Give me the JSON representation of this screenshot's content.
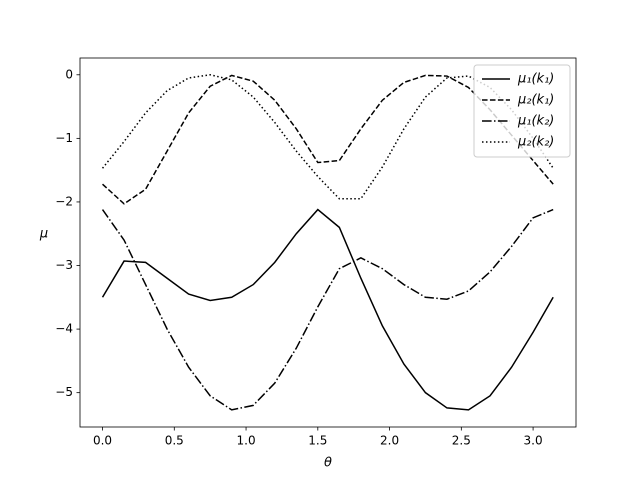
{
  "chart_data": {
    "type": "line",
    "xlabel": "θ",
    "ylabel": "μ",
    "x": [
      0,
      0.15,
      0.3,
      0.45,
      0.6,
      0.75,
      0.9,
      1.05,
      1.2,
      1.35,
      1.5,
      1.65,
      1.8,
      1.95,
      2.1,
      2.25,
      2.4,
      2.55,
      2.7,
      2.85,
      3.0,
      3.14
    ],
    "series": [
      {
        "name": "μ₁(k₁)",
        "color": "#000000",
        "linestyle": "solid",
        "values": [
          -3.5,
          -2.93,
          -2.95,
          -3.2,
          -3.45,
          -3.55,
          -3.5,
          -3.3,
          -2.95,
          -2.5,
          -2.12,
          -2.4,
          -3.2,
          -3.95,
          -4.55,
          -5.0,
          -5.24,
          -5.27,
          -5.05,
          -4.6,
          -4.05,
          -3.5
        ]
      },
      {
        "name": "μ₂(k₁)",
        "color": "#000000",
        "linestyle": "dashed",
        "values": [
          -1.72,
          -2.03,
          -1.8,
          -1.2,
          -0.6,
          -0.18,
          -0.01,
          -0.1,
          -0.4,
          -0.85,
          -1.38,
          -1.35,
          -0.85,
          -0.4,
          -0.12,
          -0.01,
          -0.02,
          -0.2,
          -0.55,
          -0.95,
          -1.35,
          -1.72
        ]
      },
      {
        "name": "μ₁(k₂)",
        "color": "#000000",
        "linestyle": "dashdot",
        "values": [
          -2.12,
          -2.6,
          -3.3,
          -4.0,
          -4.6,
          -5.05,
          -5.27,
          -5.2,
          -4.85,
          -4.3,
          -3.65,
          -3.05,
          -2.88,
          -3.05,
          -3.3,
          -3.5,
          -3.53,
          -3.4,
          -3.1,
          -2.7,
          -2.25,
          -2.12
        ]
      },
      {
        "name": "μ₂(k₂)",
        "color": "#000000",
        "linestyle": "dotted",
        "values": [
          -1.47,
          -1.05,
          -0.6,
          -0.25,
          -0.05,
          0,
          -0.08,
          -0.35,
          -0.75,
          -1.2,
          -1.6,
          -1.95,
          -1.95,
          -1.45,
          -0.85,
          -0.35,
          -0.05,
          -0.02,
          -0.2,
          -0.55,
          -1.0,
          -1.47
        ]
      }
    ],
    "xlim": [
      -0.157,
      3.299
    ],
    "ylim": [
      -5.54,
      0.264
    ],
    "xticks": [
      {
        "value": 0,
        "label": "0.0"
      },
      {
        "value": 0.5,
        "label": "0.5"
      },
      {
        "value": 1,
        "label": "1.0"
      },
      {
        "value": 1.5,
        "label": "1.5"
      },
      {
        "value": 2,
        "label": "2.0"
      },
      {
        "value": 2.5,
        "label": "2.5"
      },
      {
        "value": 3,
        "label": "3.0"
      }
    ],
    "yticks": [
      {
        "value": -5,
        "label": "−5"
      },
      {
        "value": -4,
        "label": "−4"
      },
      {
        "value": -3,
        "label": "−3"
      },
      {
        "value": -2,
        "label": "−2"
      },
      {
        "value": -1,
        "label": "−1"
      },
      0
    ],
    "grid": false,
    "legend": "upper right"
  }
}
